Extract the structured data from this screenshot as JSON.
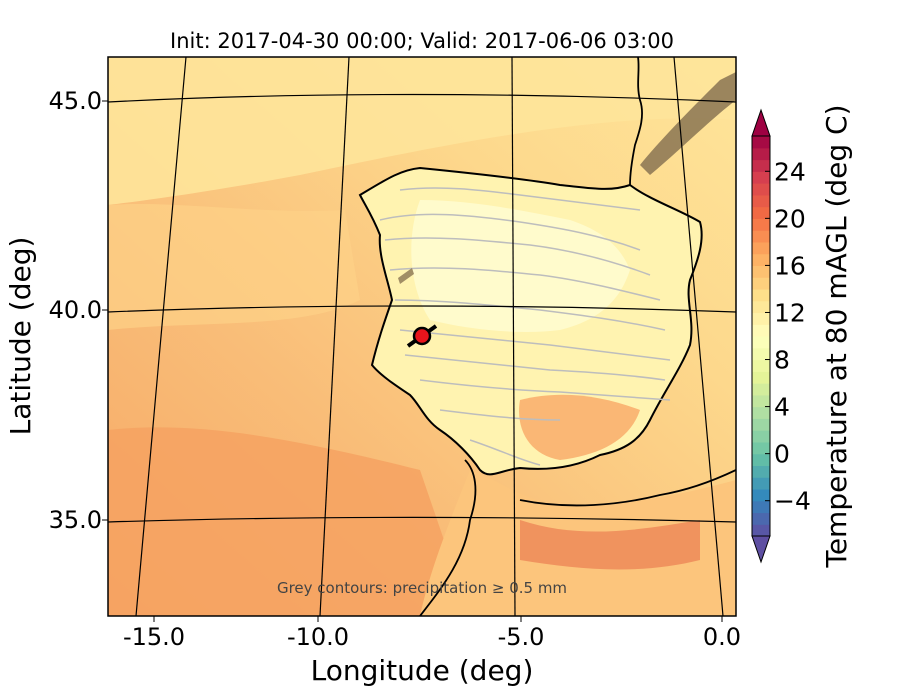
{
  "title": "Init: 2017-04-30 00:00; Valid: 2017-06-06 03:00",
  "xlabel": "Longitude (deg)",
  "ylabel": "Latitude (deg)",
  "annotation": "Grey contours: precipitation ≥ 0.5 mm",
  "x_ticks": [
    "-15.0",
    "-10.0",
    "-5.0",
    "0.0"
  ],
  "y_ticks": [
    "45.0",
    "40.0",
    "35.0"
  ],
  "colorbar": {
    "label": "Temperature at 80 mAGL (deg C)",
    "ticks": [
      "−4",
      "0",
      "4",
      "8",
      "12",
      "16",
      "20",
      "24"
    ],
    "tick_values": [
      -4,
      0,
      4,
      8,
      12,
      16,
      20,
      24
    ],
    "min": -7,
    "max": 27,
    "extend": "both",
    "colormap": "Spectral_r"
  },
  "colors": {
    "sea_warm": "#f9b574",
    "sea_mid": "#fcd185",
    "sea_cool": "#fee79b",
    "land": "#fff7bb",
    "precip_contour": "#bdbdbd",
    "marker": "#e8141c"
  },
  "marker": {
    "name": "site-marker",
    "longitude": -7.6,
    "latitude": 39.3
  }
}
